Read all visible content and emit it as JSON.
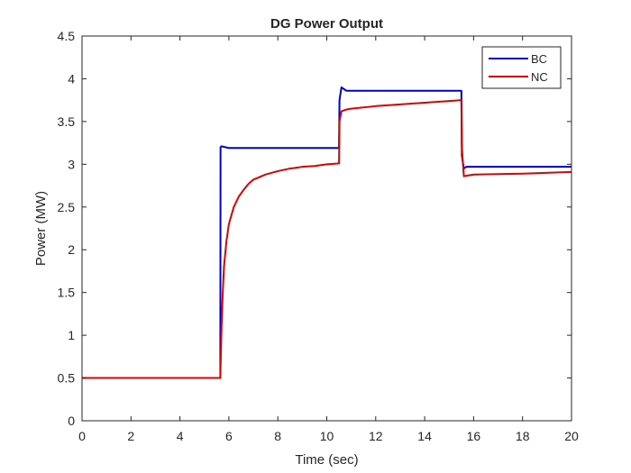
{
  "chart_data": {
    "type": "line",
    "title": "DG Power Output",
    "xlabel": "Time (sec)",
    "ylabel": "Power (MW)",
    "xlim": [
      0,
      20
    ],
    "ylim": [
      0,
      4.5
    ],
    "xticks": [
      0,
      2,
      4,
      6,
      8,
      10,
      12,
      14,
      16,
      18,
      20
    ],
    "xtick_labels": [
      "0",
      "2",
      "4",
      "6",
      "8",
      "10",
      "12",
      "14",
      "16",
      "18",
      "20"
    ],
    "yticks": [
      0,
      0.5,
      1,
      1.5,
      2,
      2.5,
      3,
      3.5,
      4,
      4.5
    ],
    "ytick_labels": [
      "0",
      "0.5",
      "1",
      "1.5",
      "2",
      "2.5",
      "3",
      "3.5",
      "4",
      "4.5"
    ],
    "grid": false,
    "legend_position": "top-right",
    "series": [
      {
        "name": "BC",
        "color": "#0000cc",
        "x": [
          0,
          5.65,
          5.66,
          5.7,
          6,
          8,
          10,
          10.5,
          10.52,
          10.6,
          10.7,
          10.8,
          11,
          12,
          14,
          15.5,
          15.52,
          15.6,
          15.7,
          15.8,
          16,
          18,
          20
        ],
        "y": [
          0.5,
          0.5,
          3.2,
          3.21,
          3.19,
          3.19,
          3.19,
          3.19,
          3.75,
          3.9,
          3.88,
          3.86,
          3.86,
          3.86,
          3.86,
          3.86,
          3.1,
          2.95,
          2.97,
          2.97,
          2.97,
          2.97,
          2.97
        ]
      },
      {
        "name": "NC",
        "color": "#e00000",
        "x": [
          0,
          5.65,
          5.7,
          5.75,
          5.8,
          5.9,
          6.0,
          6.2,
          6.4,
          6.6,
          6.8,
          7.0,
          7.5,
          8.0,
          8.5,
          9.0,
          9.5,
          10.0,
          10.5,
          10.52,
          10.6,
          10.8,
          11,
          12,
          13,
          14,
          15,
          15.5,
          15.52,
          15.6,
          15.8,
          16,
          18,
          20
        ],
        "y": [
          0.5,
          0.5,
          1.1,
          1.5,
          1.8,
          2.1,
          2.3,
          2.5,
          2.62,
          2.7,
          2.77,
          2.82,
          2.88,
          2.92,
          2.95,
          2.97,
          2.98,
          3.0,
          3.01,
          3.5,
          3.62,
          3.64,
          3.65,
          3.68,
          3.7,
          3.72,
          3.74,
          3.75,
          3.2,
          2.86,
          2.87,
          2.88,
          2.89,
          2.91
        ]
      }
    ]
  }
}
